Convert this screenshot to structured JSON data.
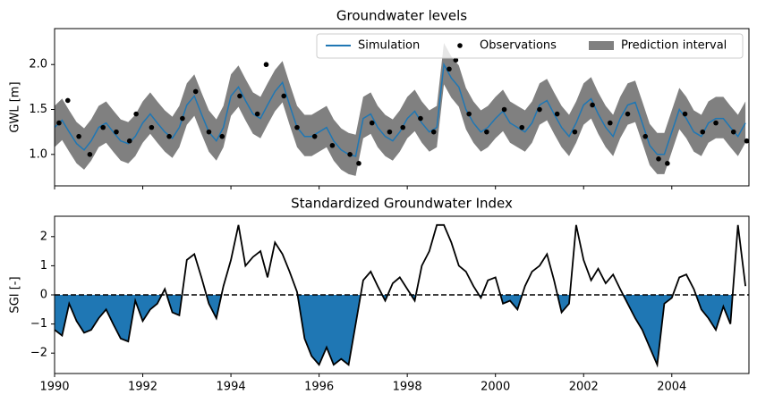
{
  "chart_data": [
    {
      "type": "line",
      "title": "Groundwater levels",
      "ylabel": "GWL [m]",
      "xlim": [
        1990,
        2005.75
      ],
      "xticks": [
        1990,
        1992,
        1994,
        1996,
        1998,
        2000,
        2002,
        2004
      ],
      "ylim": [
        0.65,
        2.4
      ],
      "yticks": [
        {
          "value": 1.0,
          "label": "1.0"
        },
        {
          "value": 1.5,
          "label": "1.5"
        },
        {
          "value": 2.0,
          "label": "2.0"
        }
      ],
      "legend": "upper right",
      "x": [
        1990,
        1990.17,
        1990.33,
        1990.5,
        1990.67,
        1990.83,
        1991,
        1991.17,
        1991.33,
        1991.5,
        1991.67,
        1991.83,
        1992,
        1992.17,
        1992.33,
        1992.5,
        1992.67,
        1992.83,
        1993,
        1993.17,
        1993.33,
        1993.5,
        1993.67,
        1993.83,
        1994,
        1994.17,
        1994.33,
        1994.5,
        1994.67,
        1994.83,
        1995,
        1995.17,
        1995.33,
        1995.5,
        1995.67,
        1995.83,
        1996,
        1996.17,
        1996.33,
        1996.5,
        1996.67,
        1996.83,
        1997,
        1997.17,
        1997.33,
        1997.5,
        1997.67,
        1997.83,
        1998,
        1998.17,
        1998.33,
        1998.5,
        1998.67,
        1998.83,
        1999,
        1999.17,
        1999.33,
        1999.5,
        1999.67,
        1999.83,
        2000,
        2000.17,
        2000.33,
        2000.5,
        2000.67,
        2000.83,
        2001,
        2001.17,
        2001.33,
        2001.5,
        2001.67,
        2001.83,
        2002,
        2002.17,
        2002.33,
        2002.5,
        2002.67,
        2002.83,
        2003,
        2003.17,
        2003.33,
        2003.5,
        2003.67,
        2003.83,
        2004,
        2004.17,
        2004.33,
        2004.5,
        2004.67,
        2004.83,
        2005,
        2005.17,
        2005.33,
        2005.5,
        2005.67
      ],
      "series": [
        {
          "name": "Simulation",
          "color": "#1f77b4",
          "values": [
            1.3,
            1.38,
            1.25,
            1.12,
            1.05,
            1.15,
            1.3,
            1.35,
            1.25,
            1.15,
            1.12,
            1.2,
            1.35,
            1.45,
            1.35,
            1.25,
            1.18,
            1.3,
            1.55,
            1.65,
            1.45,
            1.25,
            1.15,
            1.3,
            1.65,
            1.75,
            1.6,
            1.45,
            1.4,
            1.55,
            1.7,
            1.8,
            1.55,
            1.3,
            1.2,
            1.2,
            1.25,
            1.3,
            1.15,
            1.05,
            1.0,
            0.98,
            1.4,
            1.45,
            1.3,
            1.2,
            1.15,
            1.25,
            1.4,
            1.48,
            1.35,
            1.25,
            1.3,
            2.0,
            1.85,
            1.75,
            1.5,
            1.35,
            1.25,
            1.3,
            1.4,
            1.48,
            1.35,
            1.3,
            1.25,
            1.35,
            1.55,
            1.6,
            1.45,
            1.3,
            1.2,
            1.35,
            1.55,
            1.62,
            1.45,
            1.3,
            1.2,
            1.4,
            1.55,
            1.58,
            1.35,
            1.1,
            1.0,
            1.0,
            1.25,
            1.5,
            1.4,
            1.25,
            1.2,
            1.35,
            1.4,
            1.4,
            1.3,
            1.2,
            1.35
          ]
        },
        {
          "name": "Observations",
          "color": "black",
          "marker": "o",
          "x": [
            1990.1,
            1990.3,
            1990.55,
            1990.8,
            1991.1,
            1991.4,
            1991.7,
            1991.85,
            1992.2,
            1992.6,
            1992.9,
            1993.2,
            1993.5,
            1993.8,
            1994.2,
            1994.6,
            1994.8,
            1995.2,
            1995.5,
            1995.9,
            1996.3,
            1996.7,
            1996.9,
            1997.2,
            1997.6,
            1997.9,
            1998.3,
            1998.6,
            1998.95,
            1999.1,
            1999.4,
            1999.8,
            2000.2,
            2000.6,
            2001.0,
            2001.4,
            2001.8,
            2002.2,
            2002.6,
            2003.0,
            2003.4,
            2003.7,
            2003.9,
            2004.3,
            2004.7,
            2005.0,
            2005.4,
            2005.7
          ],
          "values": [
            1.35,
            1.6,
            1.2,
            1.0,
            1.3,
            1.25,
            1.15,
            1.45,
            1.3,
            1.2,
            1.4,
            1.7,
            1.25,
            1.2,
            1.65,
            1.45,
            2.0,
            1.65,
            1.3,
            1.2,
            1.1,
            1.0,
            0.9,
            1.35,
            1.25,
            1.3,
            1.4,
            1.25,
            1.95,
            2.05,
            1.45,
            1.25,
            1.5,
            1.3,
            1.5,
            1.45,
            1.25,
            1.55,
            1.35,
            1.45,
            1.2,
            0.95,
            0.9,
            1.45,
            1.25,
            1.35,
            1.25,
            1.15
          ]
        },
        {
          "name": "Prediction interval",
          "color": "gray",
          "lower": [
            1.08,
            1.16,
            1.03,
            0.9,
            0.83,
            0.93,
            1.08,
            1.13,
            1.03,
            0.93,
            0.9,
            0.98,
            1.13,
            1.23,
            1.13,
            1.03,
            0.96,
            1.08,
            1.33,
            1.43,
            1.23,
            1.03,
            0.93,
            1.08,
            1.43,
            1.53,
            1.38,
            1.23,
            1.18,
            1.33,
            1.48,
            1.58,
            1.33,
            1.08,
            0.98,
            0.98,
            1.03,
            1.08,
            0.93,
            0.83,
            0.78,
            0.76,
            1.18,
            1.23,
            1.08,
            0.98,
            0.93,
            1.03,
            1.18,
            1.26,
            1.13,
            1.03,
            1.08,
            1.78,
            1.63,
            1.53,
            1.28,
            1.13,
            1.03,
            1.08,
            1.18,
            1.26,
            1.13,
            1.08,
            1.03,
            1.13,
            1.33,
            1.38,
            1.23,
            1.08,
            0.98,
            1.13,
            1.33,
            1.4,
            1.23,
            1.08,
            0.98,
            1.18,
            1.33,
            1.36,
            1.13,
            0.88,
            0.78,
            0.78,
            1.03,
            1.28,
            1.18,
            1.03,
            0.98,
            1.13,
            1.18,
            1.18,
            1.08,
            0.98,
            1.13
          ],
          "upper": [
            1.54,
            1.62,
            1.49,
            1.36,
            1.29,
            1.39,
            1.54,
            1.59,
            1.49,
            1.39,
            1.36,
            1.44,
            1.59,
            1.69,
            1.59,
            1.49,
            1.42,
            1.54,
            1.79,
            1.89,
            1.69,
            1.49,
            1.39,
            1.54,
            1.89,
            1.99,
            1.84,
            1.69,
            1.64,
            1.79,
            1.94,
            2.04,
            1.79,
            1.54,
            1.44,
            1.44,
            1.49,
            1.54,
            1.39,
            1.29,
            1.24,
            1.22,
            1.64,
            1.69,
            1.54,
            1.44,
            1.39,
            1.49,
            1.64,
            1.72,
            1.59,
            1.49,
            1.54,
            2.24,
            2.09,
            1.99,
            1.74,
            1.59,
            1.49,
            1.54,
            1.64,
            1.72,
            1.59,
            1.54,
            1.49,
            1.59,
            1.79,
            1.84,
            1.69,
            1.54,
            1.44,
            1.59,
            1.79,
            1.86,
            1.69,
            1.54,
            1.44,
            1.64,
            1.79,
            1.82,
            1.59,
            1.34,
            1.24,
            1.24,
            1.49,
            1.74,
            1.64,
            1.49,
            1.44,
            1.59,
            1.64,
            1.64,
            1.54,
            1.44,
            1.59
          ]
        }
      ]
    },
    {
      "type": "area",
      "title": "Standardized Groundwater Index",
      "ylabel": "SGI [-]",
      "xlim": [
        1990,
        2005.75
      ],
      "xticks": [
        1990,
        1992,
        1994,
        1996,
        1998,
        2000,
        2002,
        2004
      ],
      "ylim": [
        -2.7,
        2.7
      ],
      "yticks": [
        {
          "value": -2,
          "label": "−2"
        },
        {
          "value": -1,
          "label": "−1"
        },
        0,
        1,
        2
      ],
      "color": "black",
      "fill_color": "#1f77b4",
      "x": [
        1990,
        1990.17,
        1990.33,
        1990.5,
        1990.67,
        1990.83,
        1991,
        1991.17,
        1991.33,
        1991.5,
        1991.67,
        1991.83,
        1992,
        1992.17,
        1992.33,
        1992.5,
        1992.67,
        1992.83,
        1993,
        1993.17,
        1993.33,
        1993.5,
        1993.67,
        1993.83,
        1994,
        1994.17,
        1994.33,
        1994.5,
        1994.67,
        1994.83,
        1995,
        1995.17,
        1995.33,
        1995.5,
        1995.67,
        1995.83,
        1996,
        1996.17,
        1996.33,
        1996.5,
        1996.67,
        1996.83,
        1997,
        1997.17,
        1997.33,
        1997.5,
        1997.67,
        1997.83,
        1998,
        1998.17,
        1998.33,
        1998.5,
        1998.67,
        1998.83,
        1999,
        1999.17,
        1999.33,
        1999.5,
        1999.67,
        1999.83,
        2000,
        2000.17,
        2000.33,
        2000.5,
        2000.67,
        2000.83,
        2001,
        2001.17,
        2001.33,
        2001.5,
        2001.67,
        2001.83,
        2002,
        2002.17,
        2002.33,
        2002.5,
        2002.67,
        2002.83,
        2003,
        2003.17,
        2003.33,
        2003.5,
        2003.67,
        2003.83,
        2004,
        2004.17,
        2004.33,
        2004.5,
        2004.67,
        2004.83,
        2005,
        2005.17,
        2005.33,
        2005.5,
        2005.67
      ],
      "values": [
        -1.2,
        -1.4,
        -0.3,
        -0.9,
        -1.3,
        -1.2,
        -0.8,
        -0.5,
        -1.0,
        -1.5,
        -1.6,
        -0.2,
        -0.9,
        -0.5,
        -0.3,
        0.2,
        -0.6,
        -0.7,
        1.2,
        1.4,
        0.6,
        -0.3,
        -0.8,
        0.3,
        1.2,
        2.4,
        1.0,
        1.3,
        1.5,
        0.6,
        1.8,
        1.4,
        0.8,
        0.1,
        -1.5,
        -2.1,
        -2.4,
        -1.8,
        -2.4,
        -2.2,
        -2.4,
        -1.0,
        0.5,
        0.8,
        0.3,
        -0.2,
        0.4,
        0.6,
        0.2,
        -0.2,
        1.0,
        1.5,
        2.4,
        2.4,
        1.8,
        1.0,
        0.8,
        0.3,
        -0.1,
        0.5,
        0.6,
        -0.3,
        -0.2,
        -0.5,
        0.3,
        0.8,
        1.0,
        1.4,
        0.5,
        -0.6,
        -0.3,
        2.4,
        1.2,
        0.5,
        0.9,
        0.4,
        0.7,
        0.2,
        -0.3,
        -0.8,
        -1.2,
        -1.8,
        -2.4,
        -0.3,
        -0.1,
        0.6,
        0.7,
        0.2,
        -0.5,
        -0.8,
        -1.2,
        -0.4,
        -1.0,
        2.4,
        0.3
      ]
    }
  ]
}
